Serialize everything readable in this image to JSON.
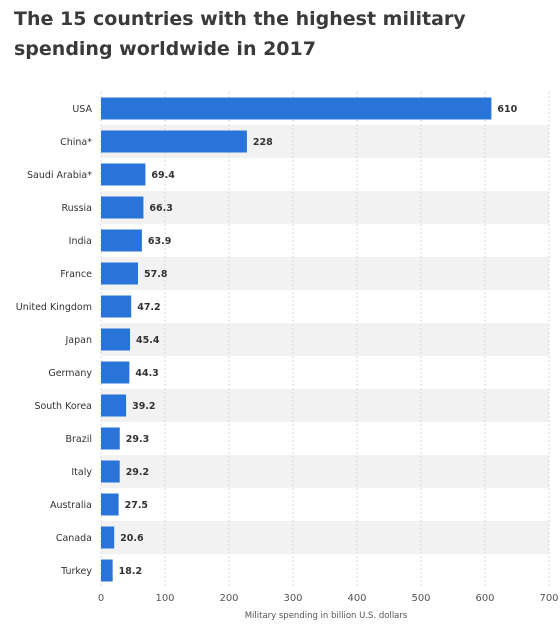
{
  "chart_data": {
    "type": "bar",
    "orientation": "horizontal",
    "title": "The 15 countries with the highest military spending worldwide in 2017",
    "xlabel": "Military spending in billion U.S. dollars",
    "ylabel": "",
    "xlim": [
      0,
      700
    ],
    "xticks": [
      0,
      100,
      200,
      300,
      400,
      500,
      600,
      700
    ],
    "grid": true,
    "categories": [
      "USA",
      "China*",
      "Saudi Arabia*",
      "Russia",
      "India",
      "France",
      "United Kingdom",
      "Japan",
      "Germany",
      "South Korea",
      "Brazil",
      "Italy",
      "Australia",
      "Canada",
      "Turkey"
    ],
    "values": [
      610,
      228,
      69.4,
      66.3,
      63.9,
      57.8,
      47.2,
      45.4,
      44.3,
      39.2,
      29.3,
      29.2,
      27.5,
      20.6,
      18.2
    ],
    "value_labels": [
      "610",
      "228",
      "69.4",
      "66.3",
      "63.9",
      "57.8",
      "47.2",
      "45.4",
      "44.3",
      "39.2",
      "29.3",
      "29.2",
      "27.5",
      "20.6",
      "18.2"
    ],
    "colors": {
      "bar": "#2874d9",
      "band": "#f2f2f2",
      "grid": "#d8d8d8"
    }
  }
}
